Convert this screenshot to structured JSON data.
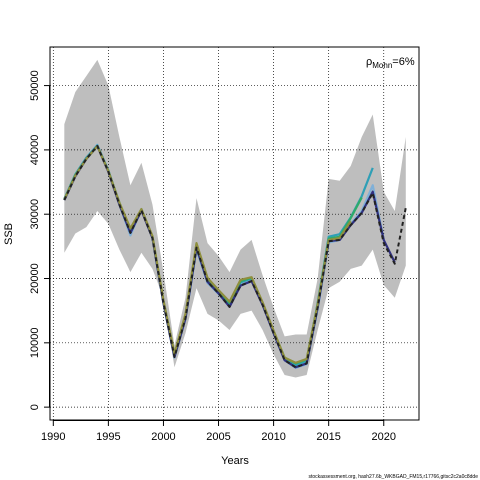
{
  "chart_data": {
    "type": "line",
    "xlabel": "Years",
    "ylabel": "SSB",
    "xlim": [
      1989.7,
      2023.2
    ],
    "ylim": [
      -2000,
      56000
    ],
    "x_ticks": [
      1990,
      1995,
      2000,
      2005,
      2010,
      2015,
      2020
    ],
    "y_ticks": [
      0,
      10000,
      20000,
      30000,
      40000,
      50000
    ],
    "grid": true,
    "annotation": {
      "main": "ρ",
      "sub": "Mohn",
      "value": "=6%"
    },
    "footer": "stockassessment.org, hash27.6b_WKBGAD_FM15,r17766,gitsc2c2a0c8dde",
    "colors": {
      "band": "#bebebe",
      "series": [
        "#7fb0d8",
        "#2e9fb6",
        "#2eab6a",
        "#30307f",
        "#8f8f3e",
        "#222222"
      ]
    },
    "band": {
      "x": [
        1991,
        1992,
        1993,
        1994,
        1995,
        1996,
        1997,
        1998,
        1999,
        2000,
        2001,
        2002,
        2003,
        2004,
        2005,
        2006,
        2007,
        2008,
        2009,
        2010,
        2011,
        2012,
        2013,
        2014,
        2015,
        2016,
        2017,
        2018,
        2019,
        2020,
        2021,
        2022
      ],
      "upper": [
        44000,
        49000,
        51500,
        54000,
        50000,
        42000,
        34500,
        38000,
        31500,
        21000,
        9600,
        17000,
        32500,
        25500,
        23500,
        21000,
        24500,
        26000,
        20500,
        15500,
        11000,
        11300,
        11300,
        20000,
        35500,
        35200,
        37500,
        42000,
        45500,
        33500,
        30500,
        42000
      ],
      "lower": [
        24000,
        27000,
        28000,
        30500,
        28500,
        24500,
        21000,
        24000,
        21500,
        17000,
        6200,
        11500,
        18500,
        14500,
        13500,
        12000,
        14500,
        15000,
        12000,
        8200,
        5000,
        4600,
        5000,
        12000,
        18500,
        19500,
        21500,
        22000,
        24500,
        19000,
        17000,
        22000
      ]
    },
    "series": [
      {
        "x": [
          1991,
          1992,
          1993,
          1994,
          1995,
          1996,
          1997,
          1998,
          1999,
          2000,
          2001,
          2002,
          2003,
          2004,
          2005,
          2006,
          2007,
          2008,
          2009,
          2010,
          2011,
          2012,
          2013,
          2014,
          2015,
          2016,
          2017,
          2018,
          2019,
          2020
        ],
        "values": [
          32200,
          36000,
          38700,
          40800,
          36800,
          31500,
          26700,
          30800,
          26300,
          16100,
          7700,
          13700,
          24500,
          19300,
          17600,
          15700,
          19000,
          19800,
          15900,
          11500,
          7300,
          6100,
          6700,
          15200,
          25600,
          26000,
          28500,
          30500,
          34500,
          26000
        ]
      },
      {
        "x": [
          1991,
          1992,
          1993,
          1994,
          1995,
          1996,
          1997,
          1998,
          1999,
          2000,
          2001,
          2002,
          2003,
          2004,
          2005,
          2006,
          2007,
          2008,
          2009,
          2010,
          2011,
          2012,
          2013,
          2014,
          2015,
          2016,
          2017,
          2018,
          2019
        ],
        "values": [
          32400,
          36200,
          38800,
          40700,
          36800,
          31700,
          27200,
          30700,
          26400,
          16300,
          8000,
          14000,
          25000,
          19700,
          17900,
          16000,
          19400,
          20000,
          16100,
          11700,
          7500,
          6500,
          7200,
          16200,
          26500,
          26900,
          29500,
          32800,
          37200
        ]
      },
      {
        "x": [
          1991,
          1992,
          1993,
          1994,
          1995,
          1996,
          1997,
          1998,
          1999,
          2000,
          2001,
          2002,
          2003,
          2004,
          2005,
          2006,
          2007,
          2008,
          2009,
          2010,
          2011,
          2012,
          2013,
          2014,
          2015,
          2016,
          2017,
          2018
        ],
        "values": [
          32300,
          36100,
          38600,
          40600,
          36700,
          31800,
          27500,
          30700,
          26500,
          16500,
          8200,
          14300,
          25300,
          20000,
          18100,
          16200,
          19600,
          20100,
          16200,
          11800,
          7700,
          6800,
          7400,
          16000,
          26200,
          26500,
          29400,
          32600
        ]
      },
      {
        "x": [
          1991,
          1992,
          1993,
          1994,
          1995,
          1996,
          1997,
          1998,
          1999,
          2000,
          2001,
          2002,
          2003,
          2004,
          2005,
          2006,
          2007,
          2008,
          2009,
          2010,
          2011,
          2012,
          2013,
          2014,
          2015,
          2016,
          2017,
          2018,
          2019,
          2020,
          2021
        ],
        "values": [
          32200,
          35900,
          38600,
          40600,
          36600,
          31500,
          27100,
          30600,
          26300,
          16200,
          7800,
          13800,
          24800,
          19500,
          17700,
          15600,
          18900,
          19600,
          15900,
          11500,
          7300,
          6200,
          6800,
          15500,
          25800,
          26000,
          28300,
          30200,
          33500,
          26000,
          22500
        ]
      },
      {
        "x": [
          1991,
          1992,
          1993,
          1994,
          1995,
          1996,
          1997,
          1998,
          1999,
          2000,
          2001,
          2002,
          2003,
          2004,
          2005,
          2006,
          2007,
          2008,
          2009,
          2010,
          2011,
          2012,
          2013,
          2014,
          2015,
          2016,
          2017
        ],
        "values": [
          32300,
          36000,
          38600,
          40600,
          36700,
          31800,
          27800,
          30800,
          26600,
          16600,
          8300,
          14500,
          25500,
          20100,
          18200,
          16400,
          19800,
          20200,
          16300,
          11900,
          7700,
          6900,
          7500,
          16000,
          26000,
          26300,
          28900
        ]
      },
      {
        "x": [
          1991,
          1992,
          1993,
          1994,
          1995,
          1996,
          1997,
          1998,
          1999,
          2000,
          2001,
          2002,
          2003,
          2004,
          2005,
          2006,
          2007,
          2008,
          2009,
          2010,
          2011,
          2012,
          2013,
          2014,
          2015,
          2016,
          2017,
          2018,
          2019,
          2020,
          2021,
          2022
        ],
        "values": [
          32200,
          35900,
          38600,
          40600,
          36600,
          31500,
          27100,
          30600,
          26300,
          16200,
          7800,
          13800,
          24800,
          19500,
          17700,
          15600,
          18900,
          19600,
          15900,
          11500,
          7300,
          6200,
          6800,
          15500,
          25800,
          26000,
          28300,
          30200,
          33300,
          25500,
          22300,
          31000
        ],
        "dashed": true
      }
    ]
  }
}
